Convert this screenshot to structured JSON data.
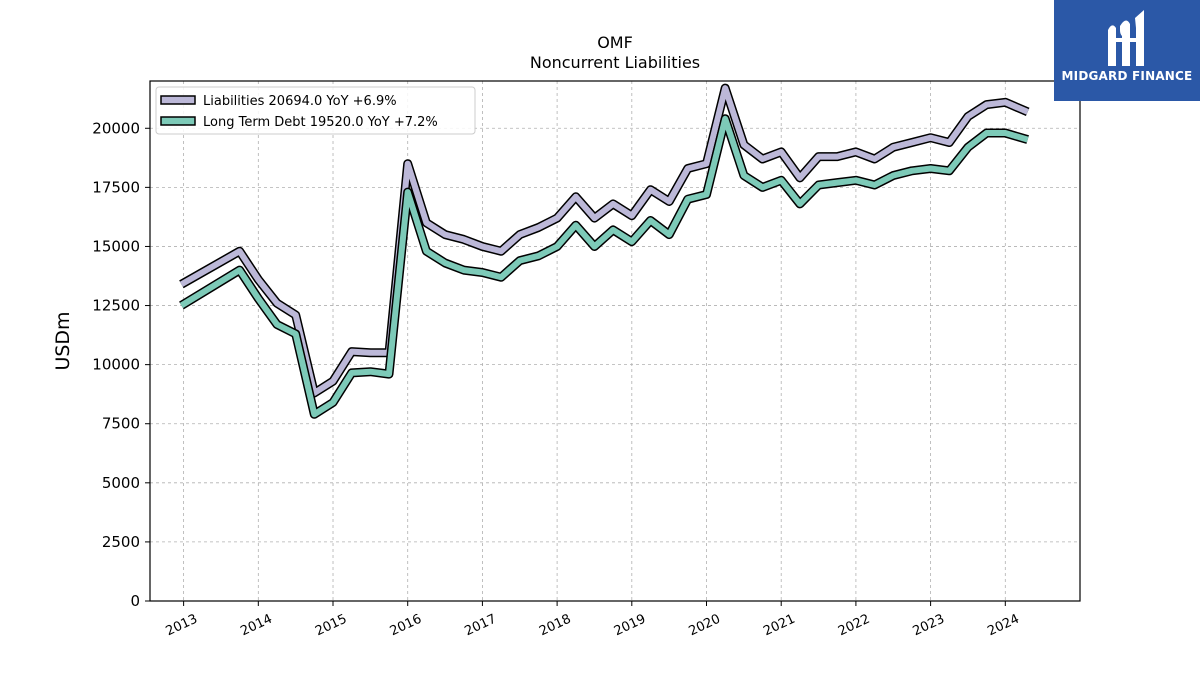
{
  "brand": {
    "name": "MIDGARD FINANCE",
    "logo_icon": "midgard-logo-icon",
    "bg_color": "#2b58a7"
  },
  "chart_data": {
    "type": "line",
    "title": "OMF",
    "subtitle": "Noncurrent  Liabilities",
    "ylabel": "USDm",
    "xlabel": "",
    "ylim": [
      0,
      22000
    ],
    "xlim": [
      2012.55,
      2025.0
    ],
    "yticks": [
      0,
      2500,
      5000,
      7500,
      10000,
      12500,
      15000,
      17500,
      20000
    ],
    "ytick_labels": [
      "0",
      "2500",
      "5000",
      "7500",
      "10000",
      "12500",
      "15000",
      "17500",
      "20000"
    ],
    "xticks": [
      2013,
      2014,
      2015,
      2016,
      2017,
      2018,
      2019,
      2020,
      2021,
      2022,
      2023,
      2024
    ],
    "xtick_labels": [
      "2013",
      "2014",
      "2015",
      "2016",
      "2017",
      "2018",
      "2019",
      "2020",
      "2021",
      "2022",
      "2023",
      "2024"
    ],
    "grid": true,
    "legend_position": "top-left",
    "x": [
      2012.97,
      2013.75,
      2014.0,
      2014.25,
      2014.5,
      2014.75,
      2015.0,
      2015.25,
      2015.5,
      2015.75,
      2016.0,
      2016.25,
      2016.5,
      2016.75,
      2017.0,
      2017.25,
      2017.5,
      2017.75,
      2018.0,
      2018.25,
      2018.5,
      2018.75,
      2019.0,
      2019.25,
      2019.5,
      2019.75,
      2020.0,
      2020.25,
      2020.5,
      2020.75,
      2021.0,
      2021.25,
      2021.5,
      2021.75,
      2022.0,
      2022.25,
      2022.5,
      2022.75,
      2023.0,
      2023.25,
      2023.5,
      2023.75,
      2024.0,
      2024.3
    ],
    "series": [
      {
        "name": "Liabilities",
        "legend_label": "Liabilities  20694.0 YoY +6.9%",
        "color": "#bcb8d8",
        "values": [
          13400,
          14800,
          13600,
          12600,
          12100,
          8800,
          9300,
          10550,
          10500,
          10500,
          18500,
          16000,
          15500,
          15300,
          15000,
          14800,
          15500,
          15800,
          16200,
          17100,
          16200,
          16800,
          16300,
          17400,
          16900,
          18300,
          18500,
          21700,
          19300,
          18700,
          19000,
          17900,
          18800,
          18800,
          19000,
          18700,
          19200,
          19400,
          19600,
          19400,
          20500,
          21000,
          21100,
          20694
        ]
      },
      {
        "name": "Long Term Debt",
        "legend_label": "Long Term Debt  19520.0 YoY +7.2%",
        "color": "#7dcab8",
        "values": [
          12500,
          14000,
          12800,
          11700,
          11300,
          7900,
          8400,
          9650,
          9700,
          9600,
          17300,
          14800,
          14300,
          14000,
          13900,
          13700,
          14400,
          14600,
          15000,
          15900,
          15000,
          15700,
          15200,
          16100,
          15500,
          17000,
          17200,
          20400,
          18000,
          17500,
          17800,
          16800,
          17600,
          17700,
          17800,
          17600,
          18000,
          18200,
          18300,
          18200,
          19200,
          19800,
          19800,
          19520
        ]
      }
    ]
  }
}
